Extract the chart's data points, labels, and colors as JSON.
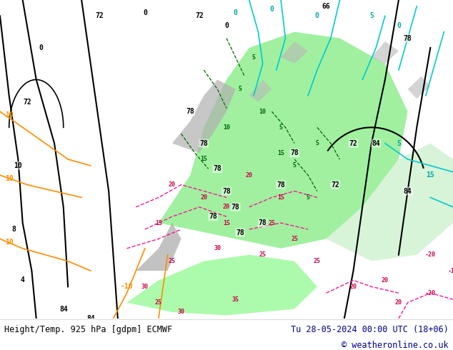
{
  "title_left": "Height/Temp. 925 hPa [gdpm] ECMWF",
  "title_right": "Tu 28-05-2024 00:00 UTC (18+06)",
  "copyright": "© weatheronline.co.uk",
  "footer_text_color": "#00008B",
  "title_text_color": "#000000",
  "fig_width": 6.34,
  "fig_height": 4.9,
  "dpi": 100
}
